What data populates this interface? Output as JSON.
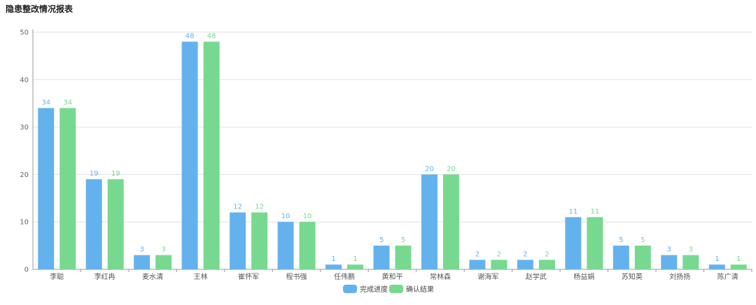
{
  "chart_data": {
    "type": "bar",
    "title": "隐患整改情况报表",
    "xlabel": "",
    "ylabel": "",
    "ylim": [
      0,
      50
    ],
    "yticks": [
      0,
      10,
      20,
      30,
      40,
      50
    ],
    "grid": true,
    "legend_position": "bottom-center",
    "categories": [
      "李聪",
      "李红冉",
      "麦水清",
      "王林",
      "崔怀军",
      "程书强",
      "任伟鹏",
      "黄和平",
      "常林森",
      "谢海军",
      "赵学武",
      "杨益娟",
      "苏知英",
      "刘扬扬",
      "陈广清"
    ],
    "series": [
      {
        "name": "完成进度",
        "color": "#64b2ed",
        "values": [
          34,
          19,
          3,
          48,
          12,
          10,
          1,
          5,
          20,
          2,
          2,
          11,
          5,
          3,
          1
        ]
      },
      {
        "name": "确认结果",
        "color": "#76d98f",
        "values": [
          34,
          19,
          3,
          48,
          12,
          10,
          1,
          5,
          20,
          2,
          2,
          11,
          5,
          3,
          1
        ]
      }
    ]
  }
}
